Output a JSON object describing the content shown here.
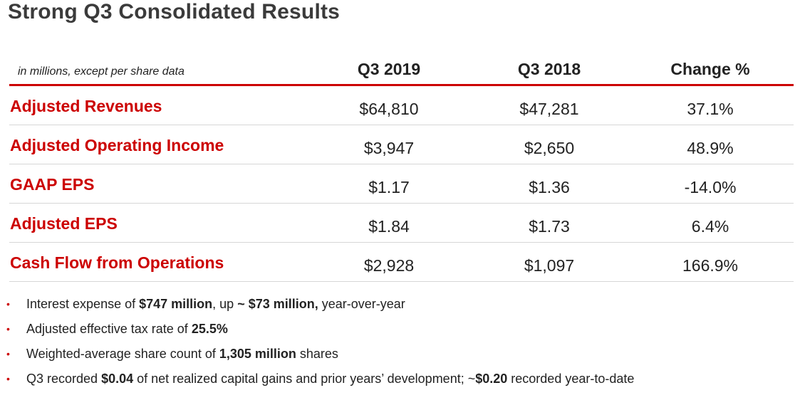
{
  "title": "Strong Q3 Consolidated Results",
  "table": {
    "note": "in millions, except per share data",
    "columns": [
      "Q3 2019",
      "Q3 2018",
      "Change %"
    ],
    "rows": [
      {
        "label": "Adjusted Revenues",
        "q3_2019": "$64,810",
        "q3_2018": "$47,281",
        "change": "37.1%"
      },
      {
        "label": "Adjusted Operating Income",
        "q3_2019": "$3,947",
        "q3_2018": "$2,650",
        "change": "48.9%"
      },
      {
        "label": "GAAP EPS",
        "q3_2019": "$1.17",
        "q3_2018": "$1.36",
        "change": "-14.0%"
      },
      {
        "label": "Adjusted EPS",
        "q3_2019": "$1.84",
        "q3_2018": "$1.73",
        "change": "6.4%"
      },
      {
        "label": "Cash Flow from Operations",
        "q3_2019": "$2,928",
        "q3_2018": "$1,097",
        "change": "166.9%"
      }
    ]
  },
  "bullets": [
    {
      "parts": [
        "Interest expense of ",
        "$747 million",
        ", up ",
        "~ $73 million,",
        " year-over-year"
      ]
    },
    {
      "parts": [
        "Adjusted effective tax rate of ",
        "25.5%"
      ]
    },
    {
      "parts": [
        "Weighted-average share count of ",
        "1,305 million",
        " shares"
      ]
    },
    {
      "parts": [
        "Q3 recorded ",
        "$0.04",
        " of net realized capital gains and prior years’ development; ~",
        "$0.20",
        " recorded year-to-date"
      ]
    }
  ],
  "colors": {
    "accent_red": "#cc0000",
    "title_gray": "#3b3b3b",
    "divider": "#d6d6d6"
  }
}
